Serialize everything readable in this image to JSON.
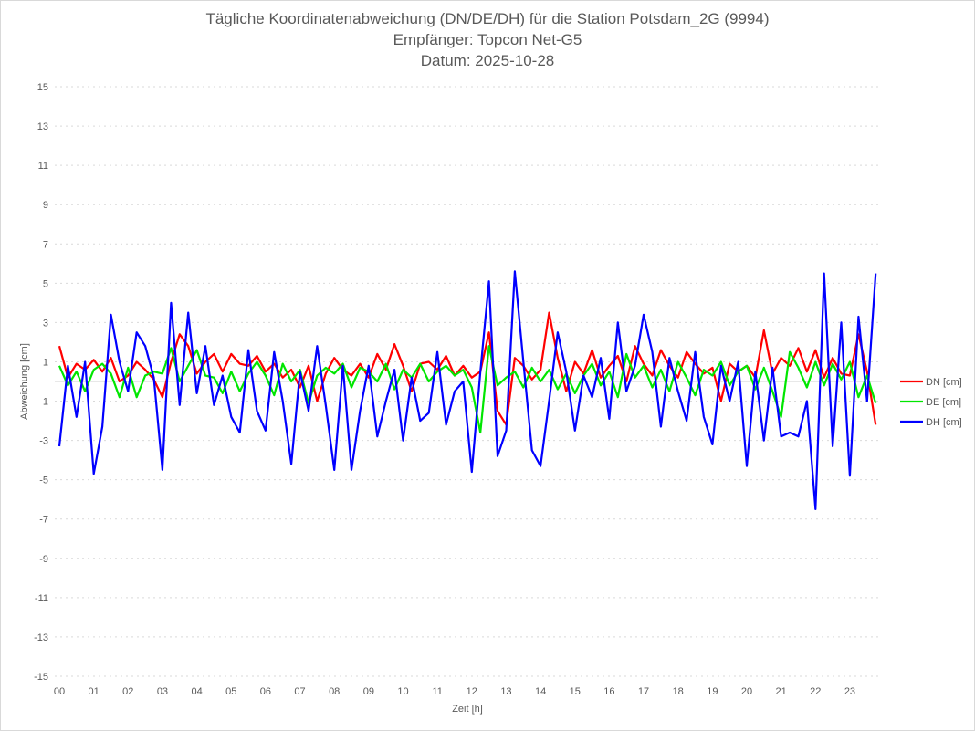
{
  "chart_data": {
    "type": "line",
    "title": [
      "Tägliche Koordinatenabweichung (DN/DE/DH) für die Station Potsdam_2G (9994)",
      "Empfänger: Topcon Net-G5",
      "Datum: 2025-10-28"
    ],
    "xlabel": "Zeit [h]",
    "ylabel": "Abweichung [cm]",
    "ylim": [
      -15,
      15
    ],
    "yticks": [
      15,
      13,
      11,
      9,
      7,
      5,
      3,
      1,
      -1,
      -3,
      -5,
      -7,
      -9,
      -11,
      -13,
      -15
    ],
    "xlim": [
      0,
      24
    ],
    "xticks": [
      "00",
      "01",
      "02",
      "03",
      "04",
      "05",
      "06",
      "07",
      "08",
      "09",
      "10",
      "11",
      "12",
      "13",
      "14",
      "15",
      "16",
      "17",
      "18",
      "19",
      "20",
      "21",
      "22",
      "23"
    ],
    "x_step_hours": 0.25,
    "grid": true,
    "legend_position": "right",
    "series": [
      {
        "name": "DN [cm]",
        "color": "#ff0000",
        "values": [
          1.8,
          0.2,
          0.9,
          0.6,
          1.1,
          0.5,
          1.2,
          0.0,
          0.3,
          1.0,
          0.6,
          0.1,
          -0.8,
          1.0,
          2.4,
          1.8,
          0.4,
          1.0,
          1.4,
          0.5,
          1.4,
          0.9,
          0.8,
          1.3,
          0.5,
          0.9,
          0.2,
          0.6,
          -0.3,
          0.8,
          -1.0,
          0.4,
          1.2,
          0.6,
          0.3,
          0.9,
          0.2,
          1.4,
          0.6,
          1.9,
          0.8,
          -0.5,
          0.9,
          1.0,
          0.6,
          1.3,
          0.3,
          0.8,
          0.2,
          0.5,
          2.5,
          -1.5,
          -2.2,
          1.2,
          0.8,
          0.1,
          0.6,
          3.5,
          1.2,
          -0.5,
          1.0,
          0.4,
          1.6,
          0.2,
          0.8,
          1.3,
          0.0,
          1.8,
          0.9,
          0.3,
          1.6,
          0.8,
          0.2,
          1.5,
          0.9,
          0.4,
          0.7,
          -1.0,
          0.9,
          0.5,
          0.8,
          0.2,
          2.6,
          0.4,
          1.2,
          0.8,
          1.7,
          0.5,
          1.6,
          0.2,
          1.2,
          0.4,
          0.3,
          2.4,
          0.5,
          -2.2
        ]
      },
      {
        "name": "DE [cm]",
        "color": "#00e600",
        "values": [
          0.8,
          -0.2,
          0.5,
          -0.5,
          0.6,
          0.9,
          0.4,
          -0.8,
          0.7,
          -0.8,
          0.3,
          0.5,
          0.4,
          1.7,
          0.0,
          0.8,
          1.6,
          0.3,
          0.2,
          -0.6,
          0.5,
          -0.5,
          0.4,
          1.0,
          0.3,
          -0.7,
          0.9,
          0.0,
          0.6,
          -1.1,
          0.3,
          0.7,
          0.4,
          0.9,
          -0.3,
          0.7,
          0.5,
          0.0,
          0.9,
          -0.4,
          0.6,
          0.2,
          0.9,
          0.0,
          0.5,
          0.8,
          0.3,
          0.6,
          -0.3,
          -2.6,
          1.8,
          -0.2,
          0.2,
          0.5,
          -0.3,
          0.7,
          0.0,
          0.6,
          -0.4,
          0.4,
          -0.6,
          0.3,
          0.9,
          -0.2,
          0.5,
          -0.8,
          1.4,
          0.2,
          0.8,
          -0.3,
          0.6,
          -0.5,
          1.0,
          0.2,
          -0.7,
          0.6,
          0.3,
          1.0,
          -0.2,
          0.5,
          0.8,
          -0.4,
          0.7,
          -0.5,
          -1.8,
          1.5,
          0.7,
          -0.3,
          1.0,
          -0.2,
          0.9,
          0.1,
          1.0,
          -0.8,
          0.3,
          -1.1
        ]
      },
      {
        "name": "DH [cm]",
        "color": "#0000ff",
        "values": [
          -3.3,
          0.8,
          -1.8,
          1.0,
          -4.7,
          -2.3,
          3.4,
          1.0,
          -0.5,
          2.5,
          1.8,
          0.2,
          -4.5,
          4.0,
          -1.2,
          3.5,
          -0.6,
          1.8,
          -1.2,
          0.3,
          -1.8,
          -2.6,
          1.6,
          -1.5,
          -2.5,
          1.5,
          -1.0,
          -4.2,
          0.5,
          -1.5,
          1.8,
          -1.2,
          -4.5,
          0.8,
          -4.5,
          -1.5,
          0.8,
          -2.8,
          -1.0,
          0.6,
          -3.0,
          0.2,
          -2.0,
          -1.6,
          1.5,
          -2.2,
          -0.5,
          0.0,
          -4.6,
          0.5,
          5.1,
          -3.8,
          -2.5,
          5.6,
          1.0,
          -3.5,
          -4.3,
          -1.0,
          2.5,
          0.5,
          -2.5,
          0.3,
          -0.8,
          1.2,
          -1.9,
          3.0,
          -0.5,
          0.8,
          3.4,
          1.5,
          -2.3,
          1.2,
          -0.5,
          -2.0,
          1.5,
          -1.8,
          -3.2,
          0.8,
          -1.0,
          1.0,
          -4.3,
          0.5,
          -3.0,
          0.7,
          -2.8,
          -2.6,
          -2.8,
          -1.0,
          -6.5,
          5.5,
          -3.3,
          3.0,
          -4.8,
          3.3,
          -1.0,
          5.5
        ]
      }
    ]
  }
}
